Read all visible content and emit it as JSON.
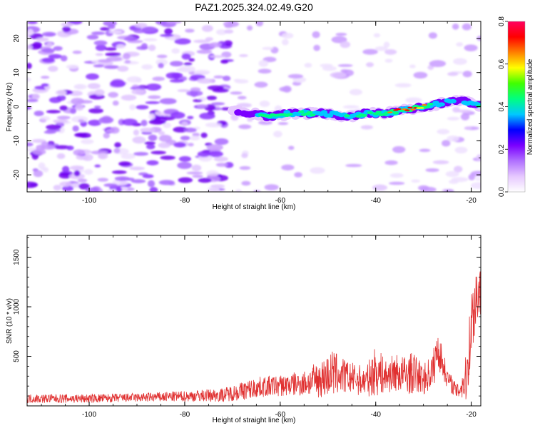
{
  "chart_data": [
    {
      "type": "heatmap",
      "title": "PAZ1.2025.324.02.49.G20",
      "xlabel": "Height of straight line (km)",
      "ylabel": "Frequency (Hz)",
      "xlim": [
        -113,
        -18
      ],
      "ylim": [
        -25,
        25
      ],
      "x_ticks": [
        -100,
        -80,
        -60,
        -40,
        -20
      ],
      "y_ticks": [
        20,
        10,
        0,
        -10,
        -20
      ],
      "x_tick_labels": [
        "-100",
        "-80",
        "-60",
        "-40",
        "-20"
      ],
      "y_tick_labels": [
        "20",
        "10",
        "0",
        "-10",
        "-20"
      ],
      "colorbar": {
        "label": "Normalized spectral amplitude",
        "range": [
          0,
          0.8
        ],
        "ticks": [
          0.0,
          0.2,
          0.4,
          0.6,
          0.8
        ],
        "tick_labels": [
          "0.0",
          "0.2",
          "0.4",
          "0.6",
          "0.8"
        ],
        "colors": [
          "#ffffff",
          "#e6c8ff",
          "#b070ff",
          "#7a00ff",
          "#0000ff",
          "#00c8ff",
          "#00ff80",
          "#40ff00",
          "#ffff00",
          "#ff8000",
          "#ff0000",
          "#ff0060"
        ]
      },
      "ridge": {
        "x": [
          -70,
          -66,
          -62,
          -58,
          -54,
          -50,
          -46,
          -42,
          -38,
          -34,
          -30,
          -26,
          -22,
          -18
        ],
        "freq": [
          -1,
          -2,
          -3,
          -2,
          -2,
          -2,
          -3,
          -2,
          -2,
          -1,
          0,
          1,
          2,
          0
        ],
        "amplitude": [
          0.15,
          0.3,
          0.55,
          0.45,
          0.5,
          0.35,
          0.45,
          0.5,
          0.55,
          0.7,
          0.6,
          0.35,
          0.3,
          0.45
        ]
      }
    },
    {
      "type": "line",
      "xlabel": "Height of straight line (km)",
      "ylabel": "SNR (10 * v/v)",
      "xlim": [
        -113,
        -18
      ],
      "ylim": [
        0,
        1720
      ],
      "x_ticks": [
        -100,
        -80,
        -60,
        -40,
        -20
      ],
      "y_ticks": [
        500,
        1000,
        1500
      ],
      "x_tick_labels": [
        "-100",
        "-80",
        "-60",
        "-40",
        "-20"
      ],
      "y_tick_labels": [
        "500",
        "1000",
        "1500"
      ],
      "color": "#e03030",
      "envelope": {
        "x": [
          -113,
          -100,
          -90,
          -80,
          -72,
          -67,
          -64,
          -60,
          -55,
          -51,
          -49,
          -46,
          -42,
          -40,
          -38,
          -36,
          -34,
          -32,
          -30,
          -28,
          -27,
          -25,
          -23,
          -21,
          -20,
          -19,
          -18
        ],
        "base": [
          60,
          60,
          70,
          80,
          90,
          130,
          160,
          170,
          190,
          220,
          260,
          240,
          200,
          280,
          240,
          280,
          250,
          270,
          220,
          300,
          520,
          250,
          120,
          200,
          700,
          1000,
          1100
        ],
        "amp": [
          90,
          90,
          90,
          110,
          140,
          200,
          210,
          220,
          260,
          400,
          480,
          330,
          300,
          520,
          350,
          380,
          400,
          420,
          300,
          400,
          420,
          200,
          150,
          500,
          800,
          700,
          600
        ]
      }
    }
  ]
}
